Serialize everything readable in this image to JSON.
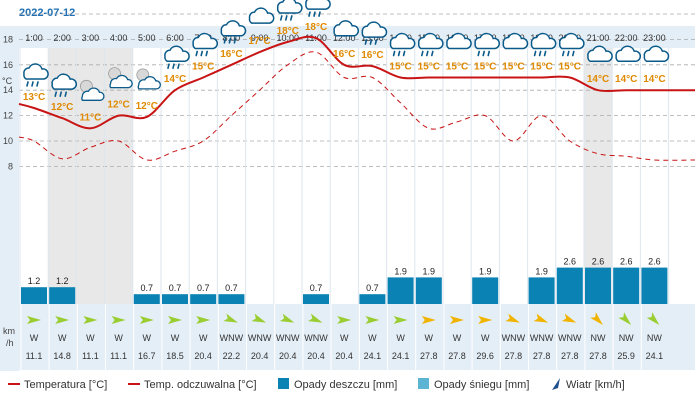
{
  "header": {
    "date": "2022-07-12",
    "temp_unit_label": "°C",
    "wind_unit_label_top": "km",
    "wind_unit_label_bottom": "/h"
  },
  "colors": {
    "temperature": "#c81414",
    "feels_like": "#c81414",
    "rain": "#0a82b4",
    "snow": "#5ab4d2",
    "wind_arrow_green": "#9acd32",
    "wind_arrow_yellow": "#f0b400",
    "night_shade": "#e8e8e8",
    "header_bg": "#e4eef6",
    "temp_label": "#e08a00"
  },
  "legend": {
    "temperature": "Temperatura [°C]",
    "feels_like": "Temp. odczuwalna [°C]",
    "rain": "Opady deszczu [mm]",
    "snow": "Opady śniegu [mm]",
    "wind": "Wiatr [km/h]"
  },
  "chart_data": {
    "type": "line",
    "title": "2022-07-12",
    "x": [
      "1:00",
      "2:00",
      "3:00",
      "4:00",
      "5:00",
      "6:00",
      "7:00",
      "8:00",
      "9:00",
      "10:00",
      "11:00",
      "12:00",
      "13:00",
      "14:00",
      "15:00",
      "16:00",
      "17:00",
      "18:00",
      "19:00",
      "20:00",
      "21:00",
      "22:00",
      "23:00"
    ],
    "y_ticks": [
      8,
      10,
      12,
      14,
      16,
      18
    ],
    "ylim": [
      7,
      20
    ],
    "grid": true,
    "series": [
      {
        "name": "Temperatura [°C]",
        "style": "solid",
        "values": [
          12.6,
          11.8,
          11.0,
          12.0,
          11.9,
          14.0,
          15.0,
          16.0,
          17.0,
          17.8,
          18.1,
          16.0,
          15.9,
          15.0,
          15.0,
          15.0,
          15.0,
          15.0,
          15.0,
          15.0,
          14.0,
          14.0,
          14.0
        ]
      },
      {
        "name": "Temp. odczuwalna [°C]",
        "style": "dashed",
        "values": [
          10.0,
          8.6,
          9.5,
          10.0,
          8.5,
          9.2,
          10.0,
          12.0,
          14.0,
          16.0,
          17.0,
          15.0,
          15.0,
          13.0,
          11.0,
          11.5,
          12.0,
          10.0,
          12.0,
          10.0,
          9.0,
          8.8,
          8.5
        ]
      }
    ],
    "temperature_labels": [
      "13°C",
      "12°C",
      "11°C",
      "12°C",
      "12°C",
      "14°C",
      "15°C",
      "16°C",
      "17°C",
      "18°C",
      "18°C",
      "16°C",
      "16°C",
      "15°C",
      "15°C",
      "15°C",
      "15°C",
      "15°C",
      "15°C",
      "15°C",
      "14°C",
      "14°C",
      "14°C"
    ],
    "weather_icons": [
      "rain-cloud-icon",
      "rain-cloud-icon",
      "partly-cloudy-night-icon",
      "partly-cloudy-night-icon",
      "partly-cloudy-night-icon",
      "rain-cloud-icon",
      "rain-cloud-icon",
      "rain-cloud-icon",
      "cloud-icon",
      "rain-cloud-icon",
      "rain-cloud-icon",
      "cloud-icon",
      "rain-cloud-icon",
      "rain-cloud-icon",
      "rain-cloud-icon",
      "cloud-icon",
      "rain-cloud-icon",
      "cloud-icon",
      "rain-cloud-icon",
      "rain-cloud-icon",
      "cloud-icon",
      "cloud-icon",
      "cloud-icon"
    ],
    "rain_mm": [
      1.2,
      1.2,
      0,
      0,
      0.7,
      0.7,
      0.7,
      0.7,
      0,
      0,
      0.7,
      0,
      0.7,
      1.9,
      1.9,
      0,
      1.9,
      0,
      1.9,
      2.6,
      2.6,
      2.6,
      2.6
    ],
    "rain_labels": [
      "1.2",
      "1.2",
      "",
      "",
      "0.7",
      "0.7",
      "0.7",
      "0.7",
      "",
      "",
      "0.7",
      "",
      "0.7",
      "1.9",
      "1.9",
      "",
      "1.9",
      "",
      "1.9",
      "2.6",
      "2.6",
      "2.6",
      "2.6"
    ],
    "night_hours": [
      "2:00",
      "3:00",
      "4:00",
      "21:00"
    ],
    "wind_direction": [
      "W",
      "W",
      "W",
      "W",
      "W",
      "W",
      "W",
      "WNW",
      "WNW",
      "WNW",
      "WNW",
      "W",
      "W",
      "W",
      "W",
      "W",
      "W",
      "WNW",
      "WNW",
      "WNW",
      "NW",
      "NW",
      "NW"
    ],
    "wind_speed": [
      "11.1",
      "14.8",
      "11.1",
      "11.1",
      "16.7",
      "18.5",
      "20.4",
      "22.2",
      "20.4",
      "20.4",
      "20.4",
      "20.4",
      "24.1",
      "24.1",
      "27.8",
      "27.8",
      "29.6",
      "27.8",
      "27.8",
      "27.8",
      "27.8",
      "25.9",
      "24.1"
    ],
    "wind_arrow_color": [
      "green",
      "green",
      "green",
      "green",
      "green",
      "green",
      "green",
      "green",
      "green",
      "green",
      "green",
      "green",
      "green",
      "green",
      "yellow",
      "yellow",
      "yellow",
      "yellow",
      "yellow",
      "yellow",
      "yellow",
      "green",
      "green"
    ]
  }
}
